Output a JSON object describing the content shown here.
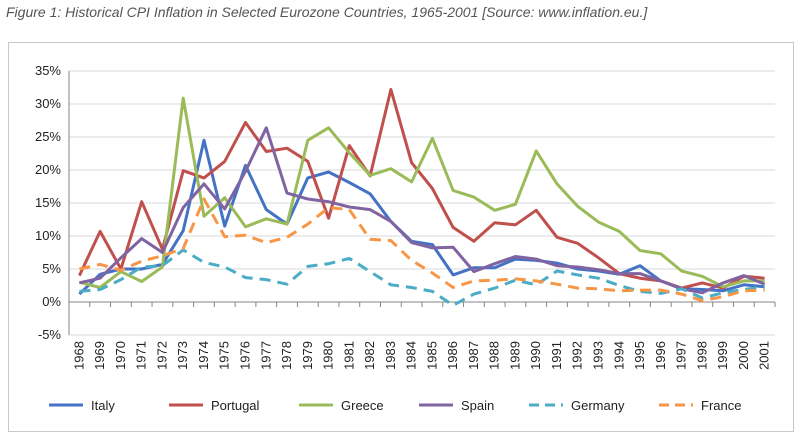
{
  "caption": "Figure 1: Historical CPI Inflation in Selected Eurozone Countries, 1965-2001 [Source: www.inflation.eu.]",
  "chart_data": {
    "type": "line",
    "title": "",
    "xlabel": "",
    "ylabel": "",
    "x": [
      "1968",
      "1969",
      "1970",
      "1971",
      "1972",
      "1973",
      "1974",
      "1975",
      "1976",
      "1977",
      "1978",
      "1979",
      "1980",
      "1981",
      "1982",
      "1983",
      "1984",
      "1985",
      "1986",
      "1987",
      "1988",
      "1989",
      "1990",
      "1991",
      "1992",
      "1993",
      "1994",
      "1995",
      "1996",
      "1997",
      "1998",
      "1999",
      "2000",
      "2001"
    ],
    "y_ticks": [
      "35%",
      "30%",
      "25%",
      "20%",
      "15%",
      "10%",
      "5%",
      "0%",
      "-5%"
    ],
    "ylim": [
      -5,
      35
    ],
    "grid": "horizontal",
    "legend": "bottom",
    "series": [
      {
        "name": "Italy",
        "color": "#4472C4",
        "dash": "solid",
        "values": [
          1.2,
          4.2,
          5.0,
          5.0,
          5.7,
          10.8,
          24.5,
          11.5,
          20.7,
          14.0,
          11.8,
          18.8,
          19.7,
          18.1,
          16.4,
          12.2,
          9.2,
          8.7,
          4.1,
          5.2,
          5.2,
          6.5,
          6.3,
          5.9,
          5.0,
          4.7,
          4.2,
          5.5,
          3.2,
          2.0,
          1.9,
          1.7,
          2.6,
          2.3
        ]
      },
      {
        "name": "Portugal",
        "color": "#C0504D",
        "dash": "solid",
        "values": [
          4.0,
          10.7,
          5.0,
          15.2,
          8.0,
          19.9,
          18.8,
          21.3,
          27.2,
          22.8,
          23.3,
          21.3,
          12.7,
          23.7,
          19.1,
          32.2,
          21.1,
          17.2,
          11.3,
          9.2,
          12.0,
          11.7,
          13.9,
          9.8,
          8.9,
          6.7,
          4.3,
          3.6,
          3.2,
          2.1,
          2.9,
          2.1,
          3.9,
          3.6
        ]
      },
      {
        "name": "Greece",
        "color": "#9BBB59",
        "dash": "solid",
        "values": [
          3.0,
          2.2,
          4.6,
          3.1,
          5.3,
          30.9,
          13.0,
          15.8,
          11.4,
          12.6,
          11.8,
          24.5,
          26.4,
          22.6,
          19.2,
          20.2,
          18.2,
          24.8,
          16.9,
          15.9,
          13.9,
          14.8,
          22.9,
          17.9,
          14.5,
          12.1,
          10.7,
          7.8,
          7.3,
          4.7,
          3.9,
          2.3,
          3.2,
          3.2
        ]
      },
      {
        "name": "Spain",
        "color": "#8064A2",
        "dash": "solid",
        "values": [
          2.9,
          3.6,
          6.7,
          9.6,
          7.5,
          14.3,
          17.9,
          14.1,
          19.8,
          26.4,
          16.5,
          15.6,
          15.2,
          14.4,
          14.0,
          12.2,
          9.0,
          8.2,
          8.3,
          4.6,
          5.8,
          6.9,
          6.5,
          5.5,
          5.3,
          4.9,
          4.3,
          4.3,
          3.2,
          2.0,
          1.4,
          2.9,
          4.0,
          2.7
        ]
      },
      {
        "name": "Germany",
        "color": "#4BACC6",
        "dash": "dashed",
        "values": [
          1.6,
          1.9,
          3.4,
          5.3,
          5.5,
          7.9,
          6.0,
          5.3,
          3.7,
          3.4,
          2.7,
          5.4,
          5.8,
          6.6,
          4.6,
          2.6,
          2.2,
          1.6,
          -0.5,
          1.2,
          2.1,
          3.3,
          2.6,
          4.7,
          4.1,
          3.6,
          2.5,
          1.6,
          1.3,
          2.0,
          0.6,
          1.4,
          1.9,
          2.3
        ]
      },
      {
        "name": "France",
        "color": "#F79646",
        "dash": "dashed",
        "values": [
          5.0,
          5.7,
          4.8,
          6.2,
          7.0,
          8.1,
          15.6,
          9.9,
          10.1,
          9.0,
          9.8,
          11.8,
          14.3,
          14.0,
          9.5,
          9.3,
          6.3,
          4.4,
          2.2,
          3.2,
          3.3,
          3.5,
          3.2,
          2.7,
          2.1,
          2.0,
          1.7,
          1.8,
          1.8,
          1.2,
          0.2,
          0.8,
          1.7,
          1.8
        ]
      }
    ]
  }
}
